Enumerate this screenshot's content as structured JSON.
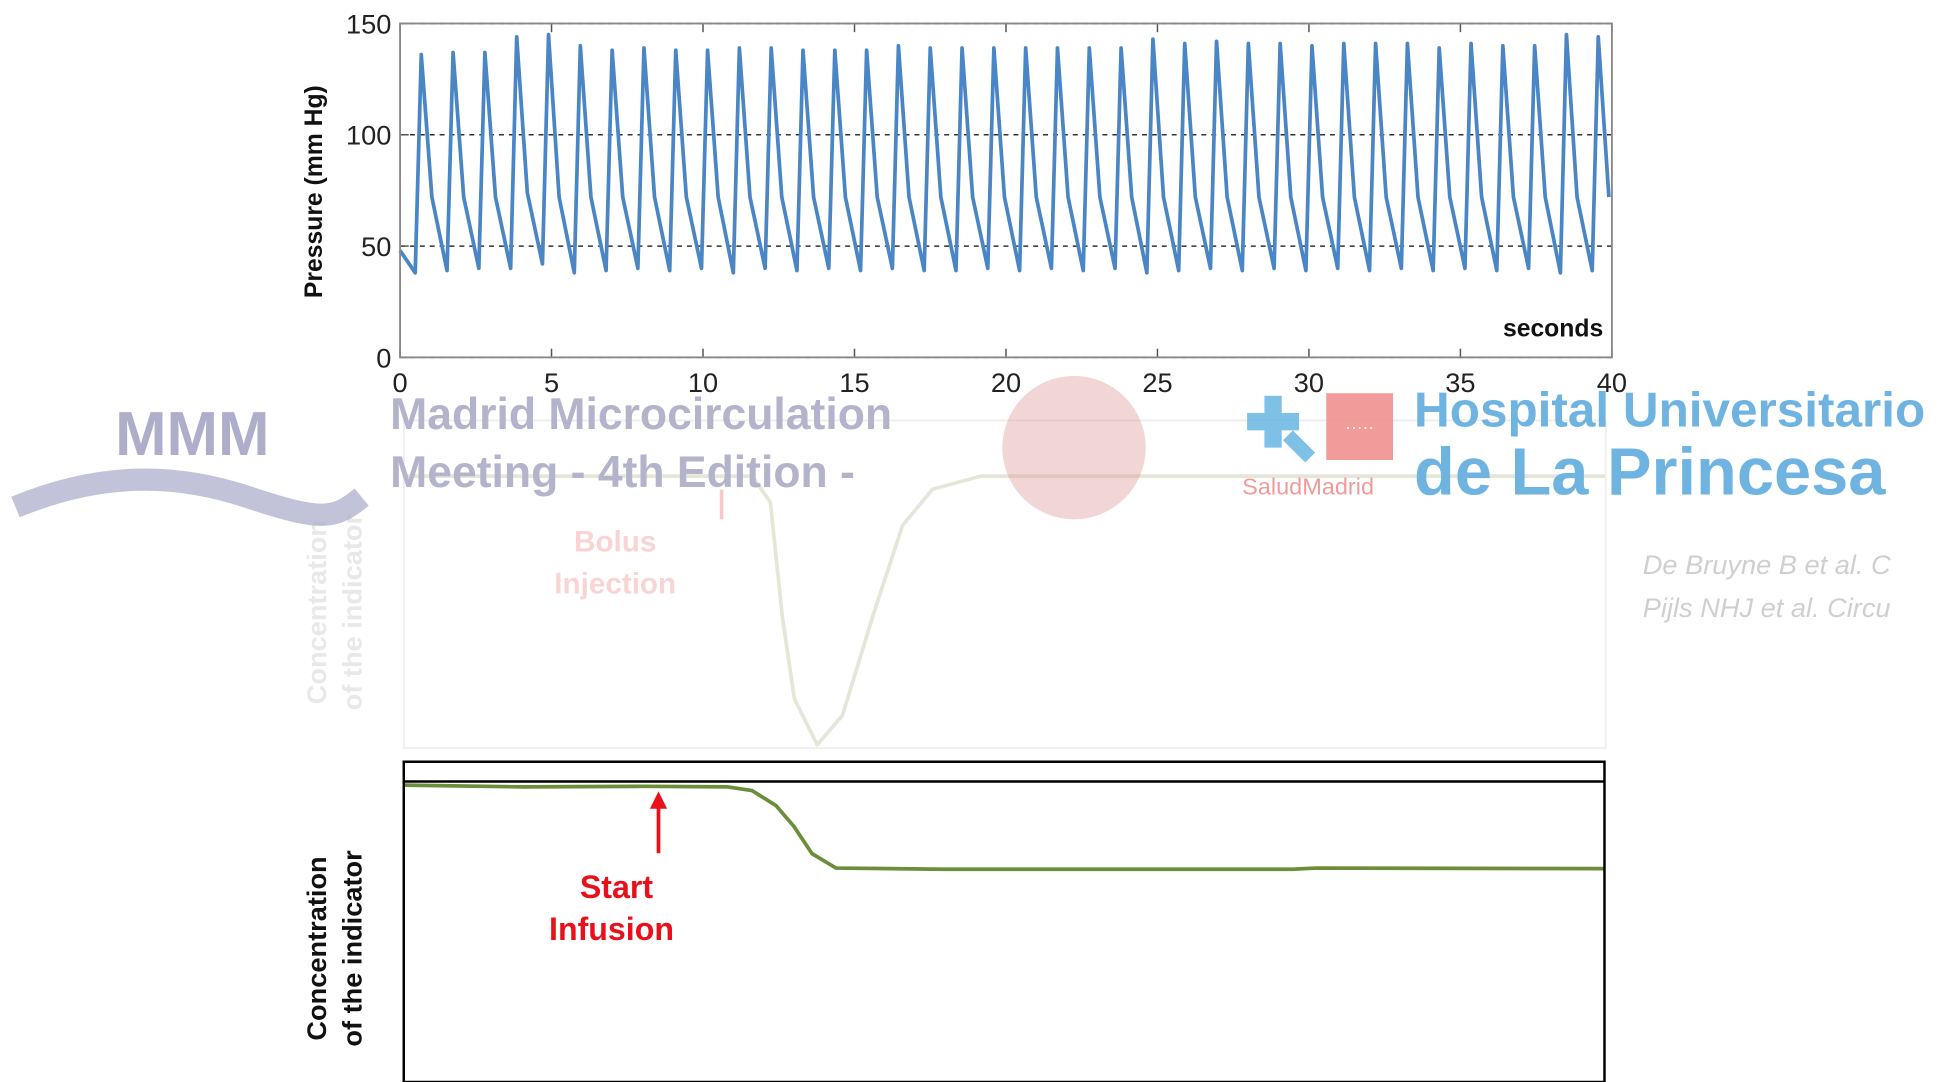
{
  "chart_data": [
    {
      "type": "line",
      "y_label": "Pressure (mm Hg)",
      "x_label": "seconds",
      "xlim": [
        0,
        40
      ],
      "ylim": [
        0,
        150
      ],
      "xticks": [
        0,
        5,
        10,
        15,
        20,
        25,
        30,
        35,
        40
      ],
      "yticks": [
        0,
        50,
        100,
        150
      ],
      "grid": true,
      "x": [
        0,
        0.5,
        0.7,
        1.05,
        1.55,
        1.75,
        2.1,
        2.6,
        2.8,
        3.15,
        3.65,
        3.85,
        4.2,
        4.7,
        4.9,
        5.25,
        5.75,
        5.95,
        6.3,
        6.8,
        7,
        7.35,
        7.85,
        8.05,
        8.4,
        8.9,
        9.1,
        9.45,
        9.95,
        10.15,
        10.5,
        11,
        11.2,
        11.55,
        12.05,
        12.25,
        12.6,
        13.1,
        13.3,
        13.65,
        14.15,
        14.35,
        14.7,
        15.2,
        15.4,
        15.75,
        16.25,
        16.45,
        16.8,
        17.3,
        17.5,
        17.85,
        18.35,
        18.55,
        18.9,
        19.4,
        19.6,
        19.95,
        20.45,
        20.65,
        21,
        21.5,
        21.7,
        22.05,
        22.55,
        22.75,
        23.1,
        23.6,
        23.8,
        24.15,
        24.65,
        24.85,
        25.2,
        25.7,
        25.9,
        26.25,
        26.75,
        26.95,
        27.3,
        27.8,
        28,
        28.35,
        28.85,
        29.05,
        29.4,
        29.9,
        30.1,
        30.45,
        30.95,
        31.15,
        31.5,
        32,
        32.2,
        32.55,
        33.05,
        33.25,
        33.6,
        34.1,
        34.3,
        34.65,
        35.15,
        35.35,
        35.7,
        36.2,
        36.4,
        36.75,
        37.25,
        37.45,
        37.8,
        38.3,
        38.5,
        38.85,
        39.35,
        39.55,
        39.9
      ],
      "series": [
        {
          "color": "#4a86c5",
          "values": [
            48,
            38,
            136,
            72,
            39,
            137,
            72,
            40,
            137,
            72,
            40,
            144,
            74,
            42,
            145,
            72,
            38,
            140,
            72,
            39,
            138,
            72,
            40,
            139,
            72,
            39,
            138,
            72,
            40,
            138,
            72,
            38,
            139,
            72,
            40,
            139,
            72,
            39,
            138,
            72,
            40,
            138,
            72,
            39,
            138,
            72,
            40,
            140,
            72,
            39,
            139,
            72,
            39,
            139,
            72,
            40,
            139,
            72,
            39,
            139,
            72,
            40,
            139,
            72,
            39,
            139,
            72,
            40,
            139,
            72,
            38,
            143,
            72,
            39,
            141,
            72,
            40,
            142,
            72,
            39,
            141,
            72,
            40,
            141,
            72,
            39,
            140,
            72,
            40,
            141,
            72,
            39,
            141,
            72,
            40,
            141,
            72,
            39,
            139,
            72,
            40,
            141,
            72,
            39,
            140,
            72,
            40,
            140,
            72,
            38,
            145,
            72,
            39,
            144,
            72
          ]
        }
      ]
    },
    {
      "type": "line",
      "y_label": [
        "Concentration",
        "of the indicator"
      ],
      "annotation": [
        "Bolus",
        "Injection"
      ],
      "xlim": [
        0,
        100
      ],
      "ylim": [
        0,
        100
      ],
      "x": [
        0,
        29,
        30.5,
        31.5,
        32.5,
        34.4,
        36.5,
        39,
        41.5,
        44,
        48,
        100
      ],
      "series": [
        {
          "color": "#e6e6d8",
          "values": [
            83,
            83,
            75,
            40,
            15,
            1,
            10,
            40,
            68,
            79,
            83,
            83
          ]
        }
      ]
    },
    {
      "type": "line",
      "y_label": [
        "Concentration",
        "of the indicator"
      ],
      "annotation": [
        "Start",
        "Infusion"
      ],
      "xlim": [
        0,
        100
      ],
      "ylim": [
        0,
        100
      ],
      "x": [
        0,
        10,
        20,
        27,
        29,
        31,
        32.5,
        34,
        36,
        45,
        74,
        76,
        100
      ],
      "series": [
        {
          "color": "#6b8e3a",
          "values": [
            98.8,
            98.2,
            98.4,
            98.2,
            97,
            92,
            85,
            76,
            71.2,
            70.8,
            70.8,
            71.2,
            71
          ]
        }
      ]
    }
  ],
  "header": {
    "logo_mark": "MMM",
    "meeting": [
      "Madrid Microcirculation",
      "Meeting - 4th Edition -"
    ],
    "health_service": "SaludMadrid",
    "hospital": [
      "Hospital Universitario",
      "de La Princesa"
    ]
  },
  "references": [
    "De Bruyne B et al. C",
    "Pijls NHJ et al. Circu"
  ]
}
